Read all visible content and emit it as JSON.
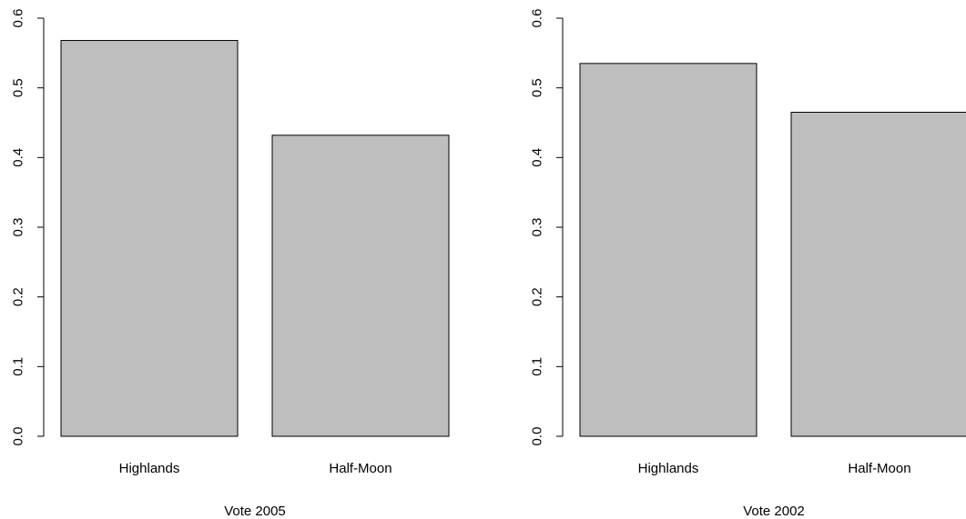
{
  "chart_data": [
    {
      "type": "bar",
      "categories": [
        "Highlands",
        "Half-Moon"
      ],
      "values": [
        0.568,
        0.432
      ],
      "xlabel": "Vote 2005",
      "ylabel": "",
      "ylim": [
        0,
        0.6
      ],
      "yticks": [
        "0.0",
        "0.1",
        "0.2",
        "0.3",
        "0.4",
        "0.5",
        "0.6"
      ],
      "grid": false,
      "bar_color": "#bebebe"
    },
    {
      "type": "bar",
      "categories": [
        "Highlands",
        "Half-Moon"
      ],
      "values": [
        0.535,
        0.465
      ],
      "xlabel": "Vote 2002",
      "ylabel": "",
      "ylim": [
        0,
        0.6
      ],
      "yticks": [
        "0.0",
        "0.1",
        "0.2",
        "0.3",
        "0.4",
        "0.5",
        "0.6"
      ],
      "grid": false,
      "bar_color": "#bebebe"
    }
  ]
}
